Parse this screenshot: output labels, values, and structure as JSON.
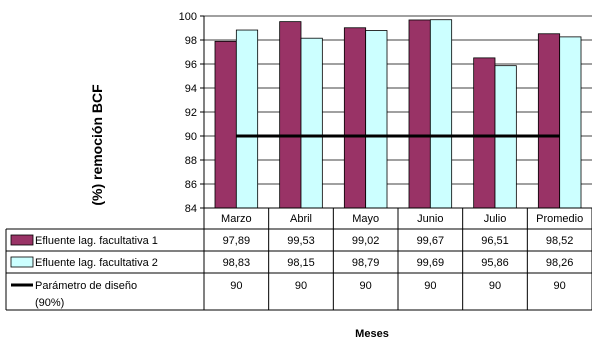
{
  "chart_data": {
    "type": "bar",
    "ylabel": "(%) remoción BCF",
    "xlabel": "Meses",
    "ylim": [
      84,
      100
    ],
    "yticks": [
      84,
      86,
      88,
      90,
      92,
      94,
      96,
      98,
      100
    ],
    "grid": true,
    "legend": "data table",
    "categories": [
      "Marzo",
      "Abril",
      "Mayo",
      "Junio",
      "Julio",
      "Promedio"
    ],
    "series": [
      {
        "name": "Efluente lag. facultativa 1",
        "type": "bar",
        "color": "#993366",
        "values": [
          97.89,
          99.53,
          99.02,
          99.67,
          96.51,
          98.52
        ],
        "labels": [
          "97,89",
          "99,53",
          "99,02",
          "99,67",
          "96,51",
          "98,52"
        ]
      },
      {
        "name": "Efluente lag. facultativa 2",
        "type": "bar",
        "color": "#CCFFFF",
        "values": [
          98.83,
          98.15,
          98.79,
          99.69,
          95.86,
          98.26
        ],
        "labels": [
          "98,83",
          "98,15",
          "98,79",
          "99,69",
          "95,86",
          "98,26"
        ]
      },
      {
        "name": "Parámetro de diseño (90%)",
        "type": "line",
        "color": "#000000",
        "values": [
          90,
          90,
          90,
          90,
          90,
          90
        ],
        "labels": [
          "90",
          "90",
          "90",
          "90",
          "90",
          "90"
        ]
      }
    ]
  }
}
